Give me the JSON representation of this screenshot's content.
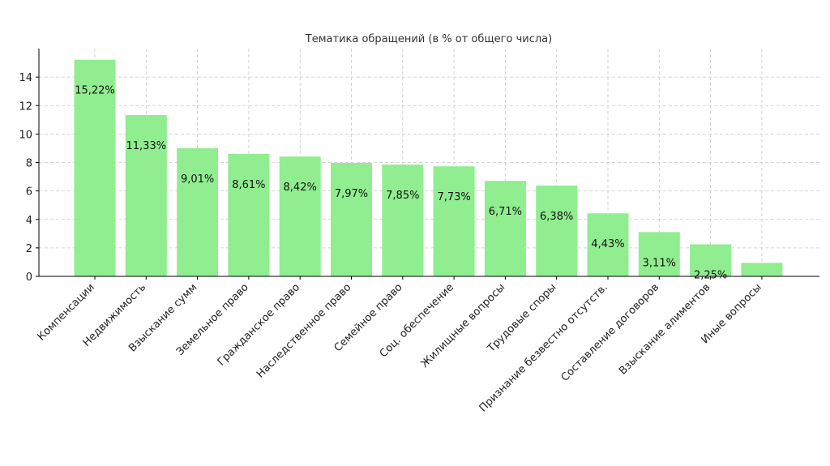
{
  "chart_data": {
    "type": "bar",
    "title": "Тематика обращений (в % от общего числа)",
    "xlabel": "",
    "ylabel": "",
    "ylim": [
      0,
      16
    ],
    "yticks": [
      0,
      2,
      4,
      6,
      8,
      10,
      12,
      14
    ],
    "grid": true,
    "bar_color": "#90ee90",
    "categories": [
      "Компенсации",
      "Недвижимость",
      "Взыскание сумм",
      "Земельное право",
      "Гражданское право",
      "Наследственное право",
      "Семейное право",
      "Соц. обеспечение",
      "Жилищные вопросы",
      "Трудовые споры",
      "Признание безвестно отсутств.",
      "Составление договоров",
      "Взыскание алиментов",
      "Иные вопросы"
    ],
    "values": [
      15.22,
      11.33,
      9.01,
      8.61,
      8.42,
      7.97,
      7.85,
      7.73,
      6.71,
      6.38,
      4.43,
      3.11,
      2.25,
      0.95
    ],
    "data_labels": [
      "15,22%",
      "11,33%",
      "9,01%",
      "8,61%",
      "8,42%",
      "7,97%",
      "7,85%",
      "7,73%",
      "6,71%",
      "6,38%",
      "4,43%",
      "3,11%",
      "2,25%",
      ""
    ]
  }
}
